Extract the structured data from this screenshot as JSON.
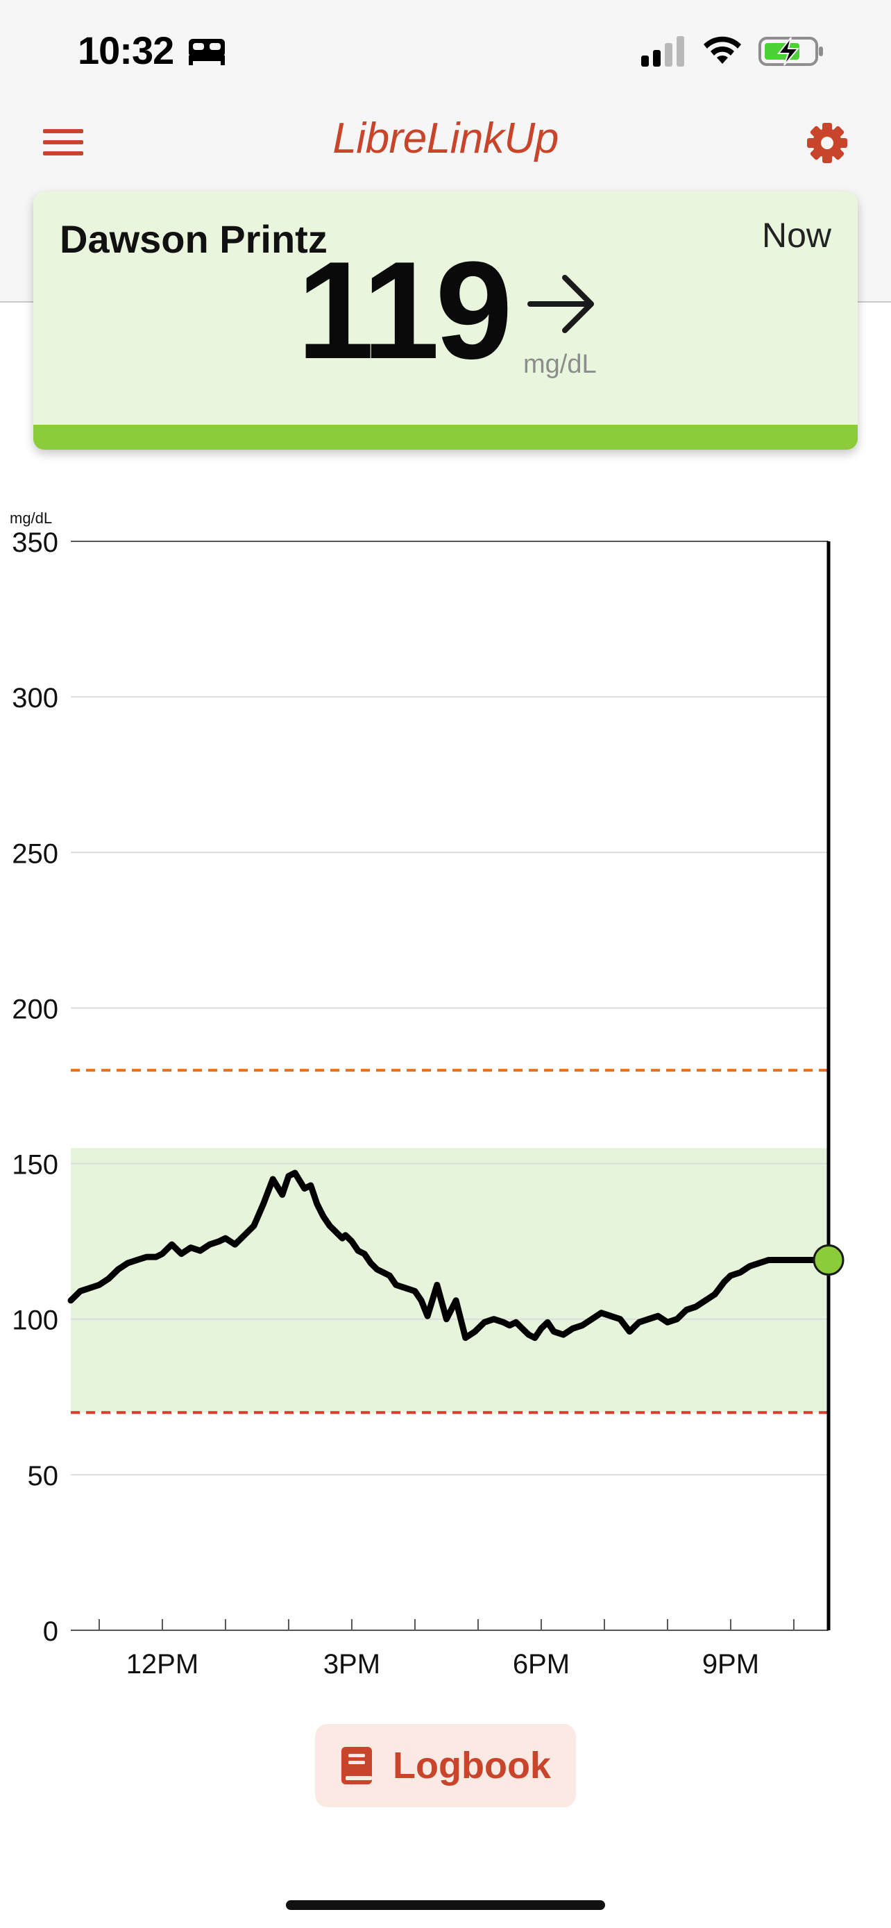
{
  "status_bar": {
    "time": "10:32",
    "icons": [
      "sleep-focus-icon",
      "cellular-signal-icon",
      "wifi-icon",
      "battery-charging-icon"
    ]
  },
  "nav": {
    "title": "LibreLinkUp",
    "left_icon": "menu-icon",
    "right_icon": "settings-gear-icon"
  },
  "reading": {
    "name": "Dawson Printz",
    "time": "Now",
    "value": "119",
    "unit": "mg/dL",
    "trend_icon": "arrow-right-icon",
    "status_color": "#8ccb3a"
  },
  "chart_data": {
    "type": "line",
    "unit_label": "mg/dL",
    "ylim": [
      0,
      350
    ],
    "y_ticks": [
      0,
      50,
      100,
      150,
      200,
      250,
      300,
      350
    ],
    "x_tick_labels": [
      "12PM",
      "3PM",
      "6PM",
      "9PM"
    ],
    "x_tick_hours": [
      12,
      15,
      18,
      21
    ],
    "x_range_hours": [
      10.55,
      22.55
    ],
    "target_range": [
      70,
      155
    ],
    "high_threshold": 180,
    "low_threshold": 70,
    "grid": true,
    "colors": {
      "line": "#000000",
      "target_fill": "#e6f4dc",
      "high_line": "#e8721c",
      "low_line": "#e03a2e",
      "current_point": "#8ccb3a"
    },
    "series": [
      {
        "x": [
          10.55,
          10.7,
          10.85,
          11.0,
          11.15,
          11.3,
          11.45,
          11.6,
          11.75,
          11.9,
          12.0,
          12.15,
          12.3,
          12.45,
          12.6,
          12.75,
          12.9,
          13.0,
          13.15,
          13.3,
          13.45,
          13.6,
          13.75,
          13.9,
          14.0,
          14.1,
          14.25,
          14.35,
          14.45,
          14.55,
          14.65,
          14.75,
          14.85,
          14.9,
          15.0,
          15.1,
          15.2,
          15.3,
          15.4,
          15.5,
          15.6,
          15.7,
          15.85,
          16.0,
          16.1,
          16.2,
          16.35,
          16.5,
          16.65,
          16.8,
          16.95,
          17.1,
          17.25,
          17.4,
          17.5,
          17.6,
          17.7,
          17.8,
          17.9,
          18.0,
          18.1,
          18.2,
          18.35,
          18.5,
          18.65,
          18.8,
          18.95,
          19.1,
          19.25,
          19.4,
          19.55,
          19.7,
          19.85,
          20.0,
          20.15,
          20.3,
          20.45,
          20.6,
          20.75,
          20.9,
          21.0,
          21.15,
          21.3,
          21.45,
          21.6,
          21.75,
          21.9,
          22.05,
          22.2,
          22.35,
          22.55
        ],
        "y": [
          106,
          109,
          110,
          111,
          113,
          116,
          118,
          119,
          120,
          120,
          121,
          124,
          121,
          123,
          122,
          124,
          125,
          126,
          124,
          127,
          130,
          137,
          145,
          140,
          146,
          147,
          142,
          143,
          137,
          133,
          130,
          128,
          126,
          127,
          125,
          122,
          121,
          118,
          116,
          115,
          114,
          111,
          110,
          109,
          106,
          101,
          111,
          100,
          106,
          94,
          96,
          99,
          100,
          99,
          98,
          99,
          97,
          95,
          94,
          97,
          99,
          96,
          95,
          97,
          98,
          100,
          102,
          101,
          100,
          96,
          99,
          100,
          101,
          99,
          100,
          103,
          104,
          106,
          108,
          112,
          114,
          115,
          117,
          118,
          119,
          119,
          119,
          119,
          119,
          119,
          119
        ]
      }
    ],
    "current_value": 119
  },
  "footer": {
    "logbook_label": "Logbook",
    "logbook_icon": "book-icon"
  }
}
